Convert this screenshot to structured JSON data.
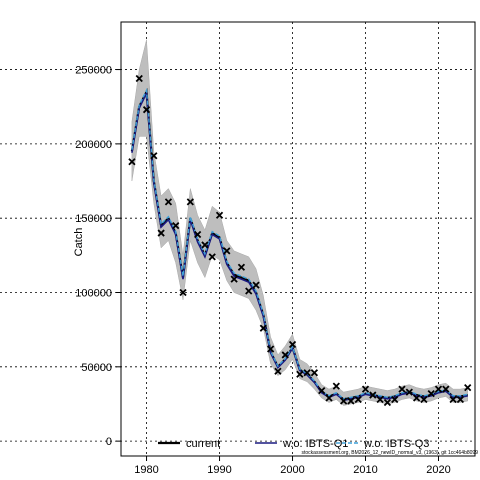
{
  "chart_data": {
    "type": "line",
    "title": "",
    "xlabel": "",
    "ylabel": "Catch",
    "xlim": [
      1976.5,
      2025
    ],
    "ylim": [
      -10000,
      282000
    ],
    "x_ticks": [
      1980,
      1990,
      2000,
      2010,
      2020
    ],
    "y_ticks": [
      0,
      50000,
      100000,
      150000,
      200000,
      250000
    ],
    "x_tick_labels": [
      "1980",
      "1990",
      "2000",
      "2010",
      "2020"
    ],
    "y_tick_labels": [
      "0",
      "50000",
      "100000",
      "150000",
      "200000",
      "250000"
    ],
    "grid": true,
    "legend": "bottom",
    "legend_entries": [
      "current",
      "w.o. IBTS-Q1",
      "w.o. IBTS-Q3"
    ],
    "footnote": "stockassessment.org, BM2026_12_newID_normal_v3, (1963), git 1cc464b8099",
    "colors": {
      "band": "#bebebe",
      "current": "#000000",
      "wo_ibts_q1": "#1a1a80",
      "wo_ibts_q3": "#3fa0d8",
      "observed": "#000000"
    },
    "years": [
      1978,
      1979,
      1980,
      1981,
      1982,
      1983,
      1984,
      1985,
      1986,
      1987,
      1988,
      1989,
      1990,
      1991,
      1992,
      1993,
      1994,
      1995,
      1996,
      1997,
      1998,
      1999,
      2000,
      2001,
      2002,
      2003,
      2004,
      2005,
      2006,
      2007,
      2008,
      2009,
      2010,
      2011,
      2012,
      2013,
      2014,
      2015,
      2016,
      2017,
      2018,
      2019,
      2020,
      2021,
      2022,
      2023,
      2024
    ],
    "series": [
      {
        "name": "current",
        "values": [
          195000,
          225000,
          235000,
          175000,
          145000,
          150000,
          140000,
          110000,
          150000,
          135000,
          125000,
          140000,
          137000,
          120000,
          112000,
          110000,
          108000,
          100000,
          85000,
          60000,
          50000,
          55000,
          63000,
          48000,
          45000,
          40000,
          33000,
          30000,
          32000,
          28000,
          29000,
          30000,
          32000,
          31000,
          30000,
          29000,
          30000,
          32000,
          33000,
          31000,
          30000,
          31000,
          33000,
          34000,
          30000,
          30000,
          31000
        ]
      },
      {
        "name": "w.o. IBTS-Q1",
        "values": [
          194000,
          224000,
          234000,
          174000,
          144000,
          149000,
          139000,
          109000,
          149000,
          134000,
          124000,
          139000,
          136000,
          119000,
          111000,
          109000,
          107000,
          99000,
          84000,
          59500,
          49500,
          54500,
          62500,
          47500,
          44500,
          39500,
          32500,
          29500,
          31500,
          27500,
          28500,
          29500,
          31500,
          30500,
          29500,
          28500,
          29500,
          31500,
          32500,
          30500,
          29500,
          30500,
          32500,
          33500,
          29500,
          29500,
          30500
        ]
      },
      {
        "name": "w.o. IBTS-Q3",
        "values": [
          196000,
          226000,
          236000,
          176000,
          146000,
          151000,
          141000,
          111000,
          151000,
          136000,
          126000,
          141000,
          138000,
          121000,
          113000,
          111000,
          109000,
          101000,
          86000,
          60500,
          50500,
          55500,
          63500,
          48500,
          45500,
          40500,
          33500,
          30500,
          32500,
          28500,
          29500,
          30500,
          32500,
          31500,
          30500,
          29500,
          30500,
          32500,
          33500,
          31500,
          30500,
          31500,
          33500,
          34500,
          30500,
          30500,
          31500
        ]
      }
    ],
    "band_lower": [
      175000,
      205000,
      205000,
      160000,
      130000,
      135000,
      120000,
      95000,
      135000,
      120000,
      110000,
      125000,
      122000,
      108000,
      100000,
      98000,
      96000,
      88000,
      76000,
      52000,
      44000,
      48000,
      55000,
      42000,
      40000,
      35000,
      29000,
      26000,
      28000,
      24000,
      25000,
      26000,
      28000,
      27000,
      26000,
      25000,
      26000,
      28000,
      29000,
      27000,
      26000,
      27000,
      29000,
      30000,
      26000,
      26000,
      27000
    ],
    "band_upper": [
      215000,
      250000,
      270000,
      195000,
      165000,
      170000,
      160000,
      125000,
      170000,
      152000,
      142000,
      158000,
      154000,
      135000,
      128000,
      126000,
      124000,
      116000,
      98000,
      70000,
      58000,
      64000,
      72000,
      55000,
      52000,
      46000,
      38000,
      35000,
      37000,
      33000,
      34000,
      35000,
      37000,
      36000,
      35000,
      34000,
      35000,
      37000,
      38000,
      36000,
      35000,
      36000,
      38000,
      39000,
      35000,
      35000,
      36000
    ],
    "observed": [
      188000,
      244000,
      223000,
      192000,
      140000,
      161000,
      145000,
      100000,
      161000,
      139000,
      132000,
      124000,
      152000,
      128000,
      109000,
      117000,
      101000,
      105000,
      76000,
      62000,
      47000,
      58000,
      65000,
      45000,
      46000,
      46000,
      34000,
      29000,
      37000,
      27000,
      27000,
      28000,
      35000,
      31000,
      28000,
      26000,
      28000,
      35000,
      33000,
      29000,
      28000,
      32000,
      35000,
      35000,
      28000,
      28000,
      36000
    ]
  }
}
